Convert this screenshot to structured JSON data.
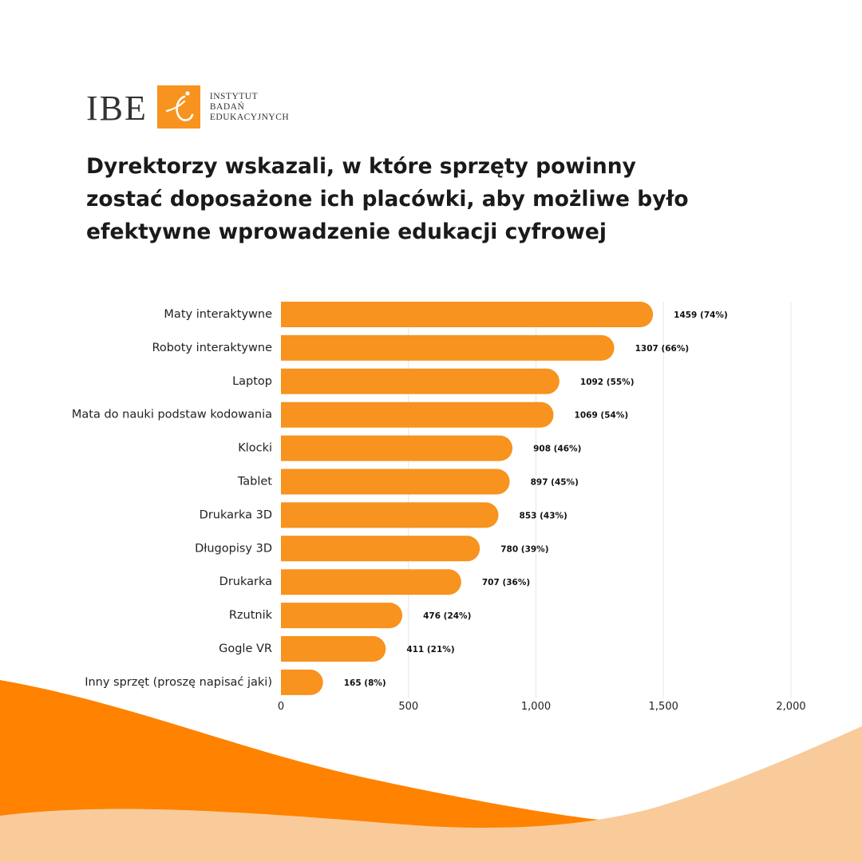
{
  "logo": {
    "abbr": "IBE",
    "name_lines": [
      "INSTYTUT",
      "BADAŃ",
      "EDUKACYJNYCH"
    ]
  },
  "title_lines": [
    "Dyrektorzy wskazali, w które sprzęty powinny",
    "zostać doposażone ich placówki, aby możliwe było",
    "efektywne wprowadzenie edukacji cyfrowej"
  ],
  "colors": {
    "bar": "#F7931E",
    "wave_dark": "#FF8200",
    "wave_light": "#F9CB9B",
    "logo_square": "#F7931E"
  },
  "chart_data": {
    "type": "bar",
    "orientation": "horizontal",
    "categories": [
      "Maty interaktywne",
      "Roboty interaktywne",
      "Laptop",
      "Mata do nauki podstaw kodowania",
      "Klocki",
      "Tablet",
      "Drukarka 3D",
      "Długopisy 3D",
      "Drukarka",
      "Rzutnik",
      "Gogle VR",
      "Inny sprzęt (proszę napisać jaki)"
    ],
    "values": [
      1459,
      1307,
      1092,
      1069,
      908,
      897,
      853,
      780,
      707,
      476,
      411,
      165
    ],
    "data_labels": [
      "1459 (74%)",
      "1307 (66%)",
      "1092 (55%)",
      "1069 (54%)",
      "908 (46%)",
      "897 (45%)",
      "853 (43%)",
      "780 (39%)",
      "707 (36%)",
      "476 (24%)",
      "411 (21%)",
      "165 (8%)"
    ],
    "xlim": [
      0,
      2000
    ],
    "xticks": [
      0,
      500,
      1000,
      1500,
      2000
    ],
    "xtick_labels": [
      "0",
      "500",
      "1,000",
      "1,500",
      "2,000"
    ],
    "grid": true
  }
}
